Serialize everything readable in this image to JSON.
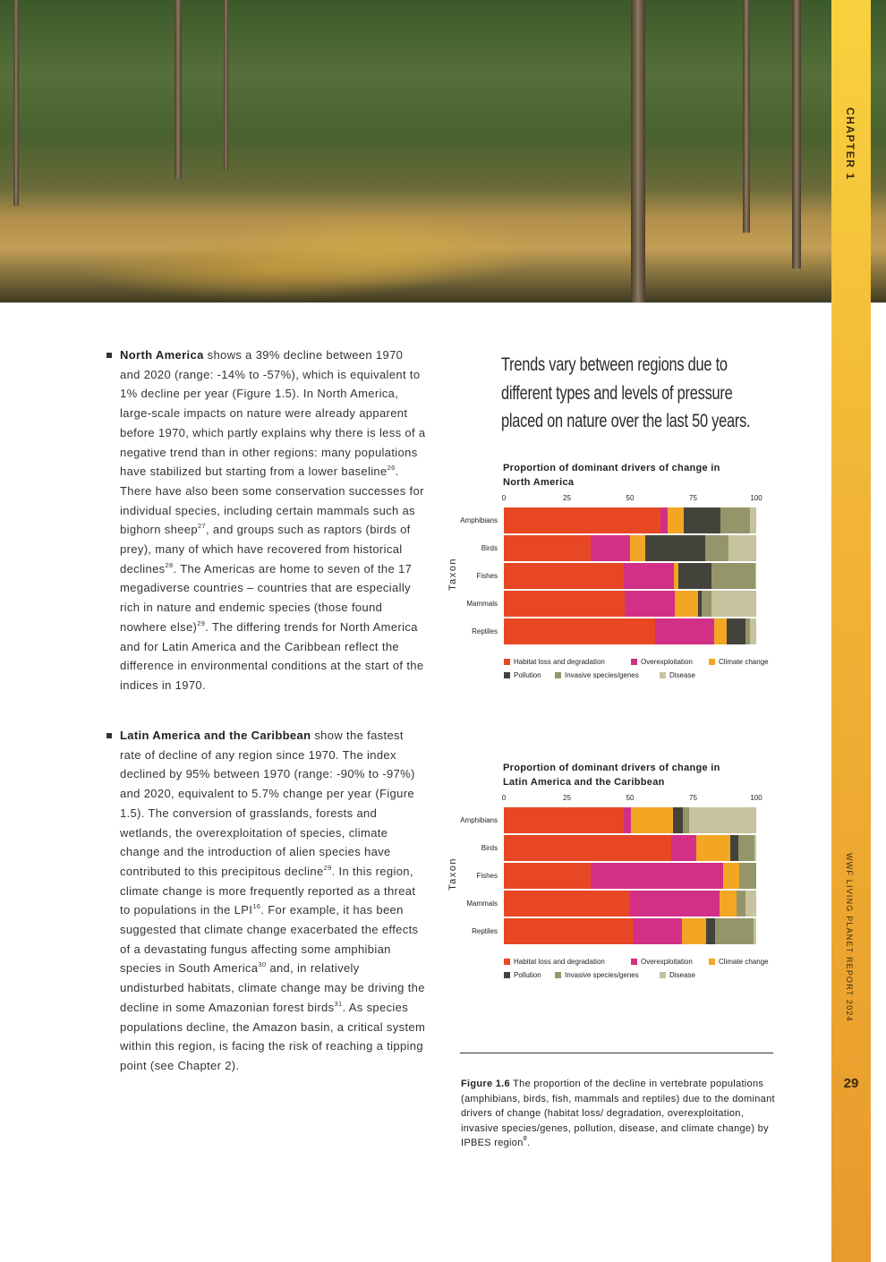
{
  "sidebar": {
    "chapter": "CHAPTER 1",
    "report": "WWF LIVING PLANET REPORT 2024",
    "page_number": "29"
  },
  "body": {
    "paragraphs": [
      [
        {
          "b": "North America"
        },
        {
          "t": " shows a 39% decline between 1970 and 2020 (range: -14% to -57%), which is equivalent to 1% decline per year (Figure 1.5). In North America, large-scale impacts on nature were already apparent before 1970, which partly explains why there is less of a negative trend than in other regions: many populations have stabilized but starting from a lower baseline"
        },
        {
          "s": "26"
        },
        {
          "t": ". There have also been some conservation successes for individual species, including certain mammals such as bighorn sheep"
        },
        {
          "s": "27"
        },
        {
          "t": ", and groups such as raptors (birds of prey), many of which have recovered from historical declines"
        },
        {
          "s": "28"
        },
        {
          "t": ". The Americas are home to seven of the 17 megadiverse countries – countries that are especially rich in nature and endemic species (those found nowhere else)"
        },
        {
          "s": "29"
        },
        {
          "t": ". The differing trends for North America and for Latin America and the Caribbean reflect the difference in environmental conditions at the start of the indices in 1970."
        }
      ],
      [
        {
          "b": "Latin America and the Caribbean"
        },
        {
          "t": " show the fastest rate of decline of any region since 1970. The index declined by 95% between 1970 (range: -90% to -97%) and 2020, equivalent to 5.7% change per year (Figure 1.5). The conversion of grasslands, forests and wetlands, the overexploitation of species, climate change and the introduction of alien species have contributed to this precipitous decline"
        },
        {
          "s": "29"
        },
        {
          "t": ". In this region, climate change is more frequently reported as a threat to populations in the LPI"
        },
        {
          "s": "16"
        },
        {
          "t": ". For example, it has been suggested that climate change exacerbated the effects of a devastating fungus affecting some amphibian species in South America"
        },
        {
          "s": "30"
        },
        {
          "t": " and, in relatively undisturbed habitats, climate change may be driving the decline in some Amazonian forest birds"
        },
        {
          "s": "31"
        },
        {
          "t": ". As species populations decline, the Amazon basin, a critical system within this region, is facing the risk of reaching a tipping point (see Chapter 2)."
        }
      ]
    ]
  },
  "quote": "Trends vary between regions due to different types and levels of pressure placed on nature over the last 50 years.",
  "caption": {
    "label": "Figure 1.6",
    "text": " The proportion of the decline in vertebrate populations (amphibians, birds, fish, mammals and reptiles) due to the dominant drivers of change (habitat loss/ degradation, overexploitation, invasive species/genes, pollution, disease, and climate change) by IPBES region",
    "sup": "8",
    "end": "."
  },
  "chart_data": [
    {
      "type": "bar",
      "stacked": true,
      "orientation": "horizontal",
      "title": "Proportion of dominant drivers of change in North America",
      "ylabel": "Taxon",
      "xlim": [
        0,
        100
      ],
      "xticks": [
        "0",
        "25",
        "50",
        "75",
        "100"
      ],
      "categories": [
        "Amphibians",
        "Birds",
        "Fishes",
        "Mammals",
        "Reptiles"
      ],
      "series": [
        {
          "name": "Habitat loss and degradation",
          "color": "#e84723",
          "values": [
            62.1,
            34.4,
            47.5,
            47.9,
            59.9
          ]
        },
        {
          "name": "Overexploitation",
          "color": "#d22f86",
          "values": [
            2.8,
            15.6,
            19.9,
            19.8,
            23.4
          ]
        },
        {
          "name": "Climate change",
          "color": "#f2a624",
          "values": [
            6.4,
            6.0,
            1.7,
            9.3,
            5.0
          ]
        },
        {
          "name": "Pollution",
          "color": "#42443c",
          "values": [
            14.5,
            23.8,
            13.2,
            1.4,
            7.4
          ]
        },
        {
          "name": "Invasive species/genes",
          "color": "#95956a",
          "values": [
            11.7,
            9.2,
            17.3,
            3.9,
            1.8
          ]
        },
        {
          "name": "Disease",
          "color": "#c7c39e",
          "values": [
            2.5,
            11.0,
            0.4,
            17.7,
            2.5
          ]
        }
      ],
      "legend": "bottom"
    },
    {
      "type": "bar",
      "stacked": true,
      "orientation": "horizontal",
      "title": "Proportion of dominant drivers of change in Latin America and the Caribbean",
      "ylabel": "Taxon",
      "xlim": [
        0,
        100
      ],
      "xticks": [
        "0",
        "25",
        "50",
        "75",
        "100"
      ],
      "categories": [
        "Amphibians",
        "Birds",
        "Fishes",
        "Mammals",
        "Reptiles"
      ],
      "series": [
        {
          "name": "Habitat loss and degradation",
          "color": "#e84723",
          "values": [
            47.5,
            66.3,
            34.4,
            50.0,
            51.4
          ]
        },
        {
          "name": "Overexploitation",
          "color": "#d22f86",
          "values": [
            2.9,
            9.9,
            52.5,
            35.5,
            19.2
          ]
        },
        {
          "name": "Climate change",
          "color": "#f2a624",
          "values": [
            16.6,
            13.5,
            6.4,
            6.7,
            9.5
          ]
        },
        {
          "name": "Pollution",
          "color": "#42443c",
          "values": [
            3.9,
            3.2,
            0,
            0,
            3.6
          ]
        },
        {
          "name": "Invasive species/genes",
          "color": "#95956a",
          "values": [
            2.5,
            6.4,
            6.7,
            3.5,
            15.2
          ]
        },
        {
          "name": "Disease",
          "color": "#c7c39e",
          "values": [
            26.6,
            0.7,
            0,
            4.3,
            1.1
          ]
        }
      ],
      "legend": "bottom"
    }
  ]
}
